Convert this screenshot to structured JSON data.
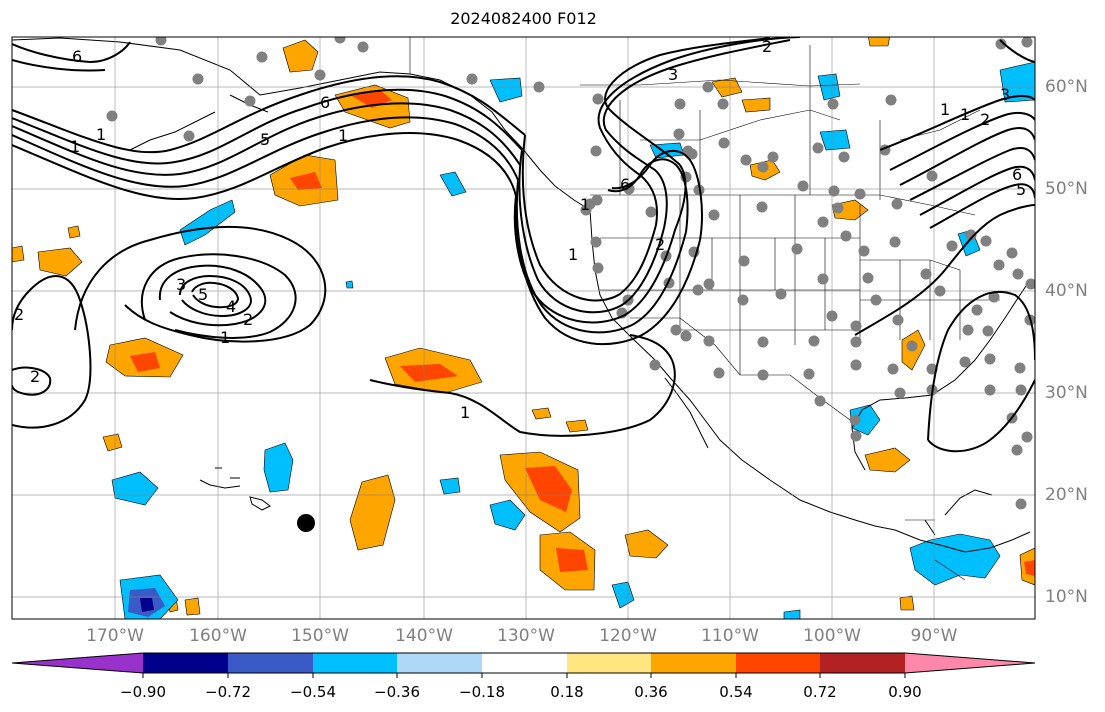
{
  "title": "2024082400 F012",
  "map": {
    "lon_labels": [
      "170°W",
      "160°W",
      "150°W",
      "140°W",
      "130°W",
      "120°W",
      "110°W",
      "100°W",
      "90°W"
    ],
    "lat_labels": [
      "60°N",
      "50°N",
      "40°N",
      "30°N",
      "20°N",
      "10°N"
    ],
    "contour_labels": [
      "6",
      "5",
      "1",
      "1",
      "2",
      "3",
      "5",
      "4",
      "1",
      "2",
      "2",
      "1",
      "1",
      "2",
      "3",
      "6",
      "2",
      "6",
      "1",
      "1",
      "2",
      "3",
      "6",
      "5",
      "1",
      "1"
    ]
  },
  "colorbar": {
    "tick_labels": [
      "−0.90",
      "−0.72",
      "−0.54",
      "−0.36",
      "−0.18",
      "0.18",
      "0.36",
      "0.54",
      "0.72",
      "0.90"
    ],
    "colors": [
      "#9932CC",
      "#00008B",
      "#3A5BC7",
      "#00BFFF",
      "#ADD8F8",
      "#FFFFFF",
      "#FFE680",
      "#FFA500",
      "#FF4500",
      "#B22222",
      "#FF88AA"
    ]
  }
}
